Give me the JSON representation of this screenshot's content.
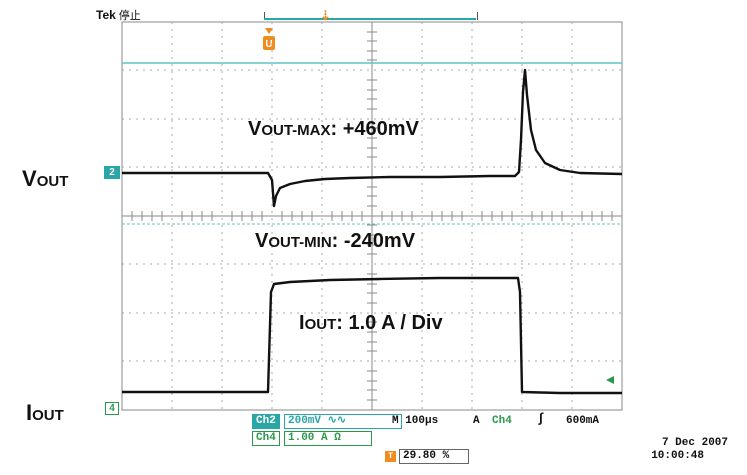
{
  "topbar": {
    "brand": "Tek",
    "state": "停止"
  },
  "side_labels": {
    "vout": {
      "main": "V",
      "sub": "OUT"
    },
    "iout": {
      "main": "I",
      "sub": "OUT"
    }
  },
  "annotations": {
    "vout_max": {
      "main": "V",
      "sub": "OUT-MAX",
      "value": ": +460mV"
    },
    "vout_min": {
      "main": "V",
      "sub": "OUT-MIN",
      "value": ": -240mV"
    },
    "iout": {
      "main": "I",
      "sub": "OUT",
      "value": ": 1.0 A / Div"
    }
  },
  "markers": {
    "ch2": "2",
    "ch4": "4",
    "trigger": "T"
  },
  "status": {
    "ch2_label": "Ch2",
    "ch2_scale": "200mV",
    "ch2_symbol": "∿∿",
    "timebase": "M 100μs",
    "trigger_mode": "A",
    "trigger_source": "Ch4",
    "trigger_slope": "∫",
    "trigger_level": "600mA",
    "ch4_label": "Ch4",
    "ch4_scale": "1.00 A Ω",
    "trigger_position": "29.80 %"
  },
  "clock": {
    "date": "7 Dec  2007",
    "time": "10:00:48"
  },
  "colors": {
    "teal": "#2aa6a6",
    "green": "#2a9a4a",
    "orange": "#f08c1c",
    "grid": "#9a9a9a",
    "trace": "#111111"
  }
}
